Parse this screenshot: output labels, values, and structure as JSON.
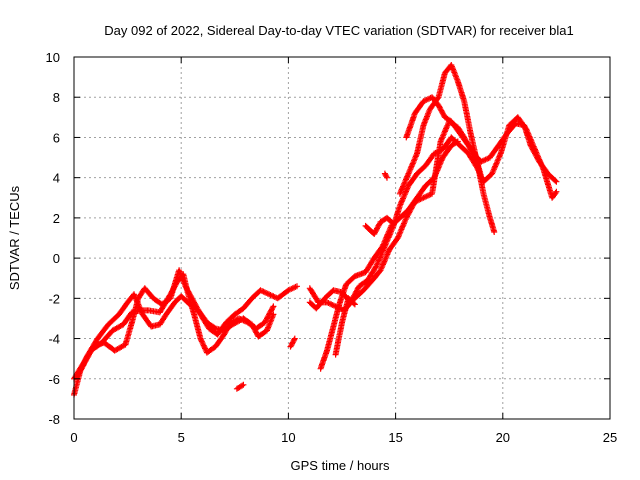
{
  "chart_data": {
    "type": "scatter",
    "title": "Day 092 of 2022, Sidereal Day-to-day VTEC variation (SDTVAR) for receiver bla1",
    "xlabel": "GPS time / hours",
    "ylabel": "SDTVAR / TECUs",
    "xlim": [
      0,
      25
    ],
    "ylim": [
      -8,
      10
    ],
    "xticks": [
      0,
      5,
      10,
      15,
      20,
      25
    ],
    "yticks": [
      -8,
      -6,
      -4,
      -2,
      0,
      2,
      4,
      6,
      8,
      10
    ],
    "grid": true,
    "marker": "+",
    "series": [
      {
        "name": "SDTVAR",
        "color": "#ff0000",
        "tracks": [
          [
            [
              0.0,
              -6.8
            ],
            [
              0.3,
              -5.6
            ],
            [
              0.8,
              -4.6
            ],
            [
              1.3,
              -4.2
            ],
            [
              1.8,
              -3.6
            ],
            [
              2.3,
              -3.3
            ],
            [
              2.7,
              -2.7
            ],
            [
              3.1,
              -2.6
            ],
            [
              3.5,
              -2.6
            ],
            [
              4.0,
              -2.7
            ],
            [
              4.5,
              -1.8
            ],
            [
              4.8,
              -1.2
            ],
            [
              5.1,
              -0.8
            ],
            [
              5.3,
              -1.7
            ],
            [
              5.6,
              -2.8
            ],
            [
              5.9,
              -4.0
            ],
            [
              6.2,
              -4.7
            ],
            [
              6.6,
              -4.4
            ],
            [
              7.0,
              -3.8
            ],
            [
              7.3,
              -3.2
            ],
            [
              7.7,
              -3.0
            ],
            [
              8.1,
              -3.2
            ],
            [
              8.5,
              -3.5
            ],
            [
              8.9,
              -3.2
            ],
            [
              9.3,
              -2.4
            ]
          ],
          [
            [
              0.0,
              -6.0
            ],
            [
              0.4,
              -5.3
            ],
            [
              0.9,
              -4.4
            ],
            [
              1.4,
              -4.2
            ],
            [
              1.9,
              -4.6
            ],
            [
              2.4,
              -4.3
            ],
            [
              2.7,
              -3.2
            ],
            [
              3.0,
              -2.0
            ],
            [
              3.3,
              -1.5
            ],
            [
              3.7,
              -2.0
            ],
            [
              4.1,
              -2.3
            ],
            [
              4.5,
              -2.0
            ],
            [
              4.9,
              -0.6
            ],
            [
              5.2,
              -1.4
            ],
            [
              5.5,
              -2.0
            ],
            [
              5.9,
              -2.8
            ],
            [
              6.3,
              -3.5
            ],
            [
              6.7,
              -3.8
            ],
            [
              7.1,
              -3.2
            ],
            [
              7.5,
              -2.8
            ],
            [
              7.9,
              -2.5
            ],
            [
              8.3,
              -2.0
            ],
            [
              8.7,
              -1.6
            ],
            [
              9.1,
              -1.8
            ],
            [
              9.5,
              -2.0
            ],
            [
              10.0,
              -1.6
            ],
            [
              10.4,
              -1.4
            ]
          ],
          [
            [
              0.2,
              -5.8
            ],
            [
              0.6,
              -4.9
            ],
            [
              1.1,
              -4.0
            ],
            [
              1.6,
              -3.3
            ],
            [
              2.1,
              -2.8
            ],
            [
              2.5,
              -2.2
            ],
            [
              2.8,
              -1.8
            ],
            [
              3.2,
              -2.8
            ],
            [
              3.6,
              -3.4
            ],
            [
              4.0,
              -3.3
            ],
            [
              4.3,
              -2.8
            ],
            [
              4.7,
              -2.2
            ],
            [
              5.0,
              -1.9
            ],
            [
              5.4,
              -2.3
            ],
            [
              5.8,
              -2.6
            ],
            [
              6.2,
              -3.2
            ],
            [
              6.6,
              -3.5
            ],
            [
              7.0,
              -3.6
            ],
            [
              7.4,
              -3.3
            ],
            [
              7.9,
              -3.0
            ],
            [
              8.3,
              -3.3
            ],
            [
              8.6,
              -3.9
            ],
            [
              9.0,
              -3.6
            ],
            [
              9.3,
              -2.8
            ]
          ],
          [
            [
              10.1,
              -4.4
            ],
            [
              10.3,
              -4.0
            ]
          ],
          [
            [
              7.6,
              -6.5
            ],
            [
              7.9,
              -6.3
            ]
          ],
          [
            [
              11.0,
              -1.5
            ],
            [
              11.4,
              -2.2
            ],
            [
              11.8,
              -2.2
            ],
            [
              12.2,
              -2.4
            ],
            [
              12.6,
              -2.6
            ],
            [
              13.0,
              -2.1
            ],
            [
              13.5,
              -1.6
            ],
            [
              14.0,
              -1.0
            ],
            [
              14.3,
              -0.6
            ],
            [
              14.7,
              0.4
            ],
            [
              15.1,
              1.0
            ],
            [
              15.5,
              2.0
            ],
            [
              15.9,
              2.8
            ],
            [
              16.3,
              3.0
            ],
            [
              16.7,
              3.2
            ],
            [
              17.1,
              5.8
            ],
            [
              17.5,
              6.8
            ],
            [
              17.9,
              6.5
            ],
            [
              18.2,
              6.0
            ],
            [
              18.6,
              5.2
            ],
            [
              19.0,
              4.8
            ],
            [
              19.4,
              5.0
            ],
            [
              19.8,
              5.6
            ],
            [
              20.2,
              6.2
            ],
            [
              20.6,
              6.7
            ],
            [
              21.0,
              6.6
            ],
            [
              21.3,
              5.6
            ],
            [
              21.7,
              4.8
            ],
            [
              22.1,
              4.2
            ],
            [
              22.5,
              3.8
            ]
          ],
          [
            [
              11.0,
              -2.2
            ],
            [
              11.3,
              -2.5
            ],
            [
              11.7,
              -2.0
            ],
            [
              12.1,
              -1.6
            ],
            [
              12.5,
              -1.7
            ],
            [
              12.9,
              -2.2
            ],
            [
              13.3,
              -1.4
            ],
            [
              13.7,
              -1.1
            ],
            [
              14.1,
              -0.4
            ],
            [
              14.5,
              0.6
            ],
            [
              14.9,
              1.6
            ],
            [
              15.2,
              2.6
            ],
            [
              15.6,
              3.6
            ],
            [
              16.0,
              4.2
            ],
            [
              16.4,
              4.6
            ],
            [
              16.8,
              5.2
            ],
            [
              17.2,
              5.4
            ],
            [
              17.6,
              6.0
            ],
            [
              18.0,
              5.6
            ],
            [
              18.4,
              5.2
            ],
            [
              18.8,
              4.5
            ],
            [
              19.1,
              3.8
            ],
            [
              19.5,
              4.2
            ],
            [
              19.9,
              5.2
            ],
            [
              20.3,
              6.6
            ],
            [
              20.7,
              7.0
            ],
            [
              21.1,
              6.4
            ],
            [
              21.5,
              5.4
            ],
            [
              21.9,
              4.4
            ],
            [
              22.3,
              3.0
            ],
            [
              22.5,
              3.3
            ]
          ],
          [
            [
              11.5,
              -5.5
            ],
            [
              11.8,
              -4.6
            ],
            [
              12.1,
              -3.4
            ],
            [
              12.4,
              -2.2
            ],
            [
              12.7,
              -1.3
            ],
            [
              13.1,
              -0.9
            ],
            [
              13.6,
              -0.7
            ],
            [
              14.0,
              0.0
            ],
            [
              14.4,
              0.6
            ],
            [
              14.8,
              1.6
            ],
            [
              15.2,
              2.0
            ],
            [
              15.6,
              2.4
            ],
            [
              16.0,
              3.0
            ],
            [
              16.4,
              3.6
            ],
            [
              16.8,
              4.0
            ],
            [
              17.2,
              5.0
            ],
            [
              17.6,
              5.6
            ],
            [
              17.9,
              5.8
            ]
          ],
          [
            [
              12.2,
              -4.8
            ],
            [
              12.5,
              -3.2
            ],
            [
              12.8,
              -2.0
            ],
            [
              13.1,
              -2.3
            ]
          ],
          [
            [
              13.6,
              1.6
            ],
            [
              14.0,
              1.2
            ],
            [
              14.3,
              1.8
            ],
            [
              14.6,
              2.0
            ],
            [
              14.9,
              1.7
            ]
          ],
          [
            [
              14.5,
              4.2
            ],
            [
              14.6,
              4.0
            ]
          ],
          [
            [
              15.2,
              3.2
            ],
            [
              15.6,
              4.2
            ],
            [
              16.0,
              5.2
            ],
            [
              16.3,
              6.6
            ],
            [
              16.6,
              7.4
            ],
            [
              17.0,
              8.0
            ],
            [
              17.3,
              9.2
            ],
            [
              17.6,
              9.6
            ],
            [
              17.9,
              8.8
            ],
            [
              18.2,
              7.8
            ],
            [
              18.5,
              6.2
            ],
            [
              18.8,
              4.8
            ],
            [
              19.1,
              3.2
            ],
            [
              19.4,
              2.0
            ],
            [
              19.6,
              1.3
            ]
          ],
          [
            [
              15.5,
              6.0
            ],
            [
              15.9,
              7.2
            ],
            [
              16.3,
              7.8
            ],
            [
              16.7,
              8.0
            ],
            [
              17.0,
              7.6
            ],
            [
              17.3,
              7.0
            ],
            [
              17.6,
              6.8
            ],
            [
              18.0,
              6.2
            ],
            [
              18.4,
              5.6
            ],
            [
              18.7,
              5.2
            ],
            [
              19.0,
              4.0
            ]
          ]
        ]
      }
    ]
  }
}
